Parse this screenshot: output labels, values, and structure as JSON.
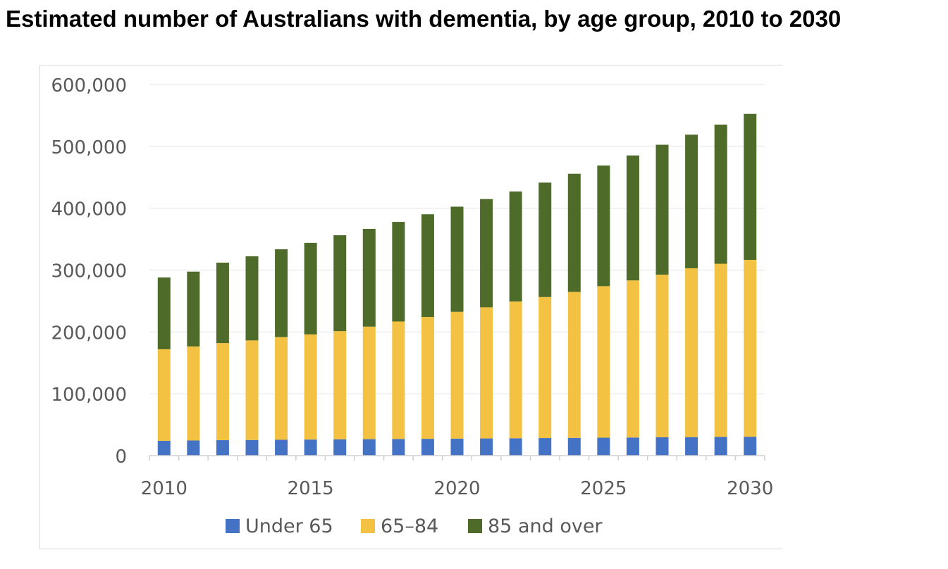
{
  "title": "Estimated number of Australians with dementia, by age group, 2010 to 2030",
  "chart_data": {
    "type": "bar",
    "stacked": true,
    "categories": [
      "2010",
      "2011",
      "2012",
      "2013",
      "2014",
      "2015",
      "2016",
      "2017",
      "2018",
      "2019",
      "2020",
      "2021",
      "2022",
      "2023",
      "2024",
      "2025",
      "2026",
      "2027",
      "2028",
      "2029",
      "2030"
    ],
    "x_tick_labels": [
      "2010",
      "2015",
      "2020",
      "2025",
      "2030"
    ],
    "y_tick_labels": [
      "0",
      "100,000",
      "200,000",
      "300,000",
      "400,000",
      "500,000",
      "600,000"
    ],
    "ylim": [
      0,
      600000
    ],
    "grid": true,
    "legend_position": "bottom",
    "series": [
      {
        "name": "Under 65",
        "color": "#4472c4",
        "values": [
          24000,
          24500,
          25000,
          25300,
          25600,
          26000,
          26300,
          26600,
          26900,
          27200,
          27500,
          27800,
          28100,
          28400,
          28700,
          29000,
          29300,
          29600,
          29900,
          30200,
          30500
        ]
      },
      {
        "name": "65–84",
        "color": "#f4c242",
        "values": [
          148000,
          152000,
          157000,
          161000,
          166000,
          170000,
          175000,
          182000,
          190000,
          197000,
          205000,
          212000,
          221000,
          228000,
          236000,
          245000,
          254000,
          263000,
          273000,
          280000,
          286000
        ]
      },
      {
        "name": "85 and over",
        "color": "#4e6b2a",
        "values": [
          116000,
          121000,
          130000,
          136000,
          142000,
          148000,
          155000,
          158000,
          161000,
          166000,
          170000,
          175000,
          178000,
          185000,
          191000,
          195000,
          202000,
          210000,
          216000,
          225000,
          236000
        ]
      }
    ]
  }
}
